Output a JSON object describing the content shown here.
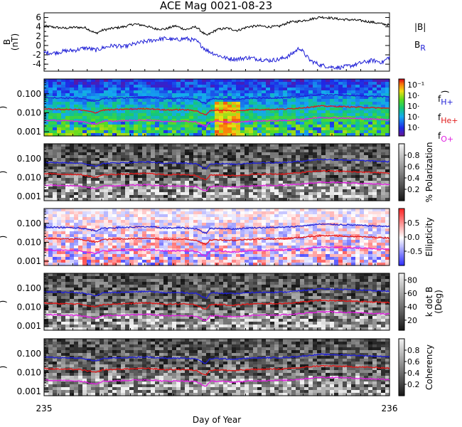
{
  "chart_data": {
    "type": "line",
    "title": "ACE Mag 0021-08-23",
    "xlabel": "Day of Year",
    "x_ticks": [
      "235",
      "236"
    ],
    "xlim": [
      235,
      236
    ],
    "panels": [
      {
        "id": "field",
        "ylabel": "B (nT)",
        "ylabel_line1": "B",
        "ylabel_line2": "(nT)",
        "ylim": [
          -5.5,
          7
        ],
        "y_ticks": [
          "6",
          "4",
          "2",
          "0",
          "-2",
          "-4"
        ],
        "y_tick_values": [
          6,
          4,
          2,
          0,
          -2,
          -4
        ],
        "legend": [
          {
            "name": "|B|",
            "color": "#000000"
          },
          {
            "name": "B",
            "sub": "R",
            "color": "#1f1fd6"
          }
        ],
        "series": [
          {
            "name": "|B|",
            "color": "#000000",
            "x": [
              235.0,
              235.03,
              235.06,
              235.09,
              235.12,
              235.15,
              235.17,
              235.2,
              235.23,
              235.26,
              235.29,
              235.32,
              235.35,
              235.38,
              235.41,
              235.44,
              235.47,
              235.5,
              235.53,
              235.56,
              235.59,
              235.62,
              235.65,
              235.68,
              235.71,
              235.74,
              235.77,
              235.8,
              235.83,
              235.86,
              235.89,
              235.92,
              235.95,
              235.98,
              236.0
            ],
            "values": [
              4.2,
              3.9,
              3.7,
              3.9,
              3.8,
              2.6,
              3.3,
              3.7,
              4.0,
              4.6,
              4.3,
              3.6,
              3.5,
              4.2,
              3.4,
              4.0,
              2.1,
              3.4,
              3.7,
              3.2,
              4.0,
              4.2,
              4.0,
              4.1,
              5.0,
              5.2,
              5.6,
              6.1,
              5.9,
              5.6,
              5.5,
              5.3,
              5.0,
              4.6,
              4.4
            ]
          },
          {
            "name": "B_R",
            "color": "#1f1fd6",
            "x": [
              235.0,
              235.03,
              235.06,
              235.09,
              235.12,
              235.15,
              235.17,
              235.2,
              235.23,
              235.26,
              235.29,
              235.32,
              235.35,
              235.38,
              235.41,
              235.44,
              235.47,
              235.5,
              235.53,
              235.56,
              235.59,
              235.62,
              235.65,
              235.68,
              235.71,
              235.74,
              235.77,
              235.8,
              235.83,
              235.86,
              235.89,
              235.92,
              235.95,
              235.98,
              236.0
            ],
            "values": [
              -1.5,
              -1.6,
              -1.2,
              -1.0,
              -0.5,
              -1.0,
              -0.5,
              0.0,
              -0.3,
              0.3,
              0.8,
              1.2,
              1.5,
              1.2,
              1.5,
              1.0,
              -1.0,
              -2.0,
              -2.8,
              -2.9,
              -2.6,
              -2.9,
              -3.2,
              -3.0,
              -2.2,
              -0.5,
              -3.2,
              -4.2,
              -4.6,
              -4.7,
              -4.3,
              -3.7,
              -3.2,
              -3.6,
              -2.4
            ]
          }
        ]
      },
      {
        "id": "power",
        "ylim_log": [
          0.0006,
          0.6
        ],
        "y_ticks": [
          "0.100",
          "0.010",
          "0.001"
        ],
        "y_tick_values": [
          0.1,
          0.01,
          0.001
        ],
        "colorbar": {
          "colormap": "rainbow",
          "tick_labels": [
            "10⁻¹",
            "10·",
            "10·",
            "10·",
            "10·"
          ],
          "label": ")"
        },
        "legend": [
          {
            "name": "f",
            "sub": "H+",
            "color": "#1f1fd6"
          },
          {
            "name": "f",
            "sub": "He+",
            "color": "#e01818"
          },
          {
            "name": "f",
            "sub": "O+",
            "color": "#e020e0"
          }
        ]
      },
      {
        "id": "polarization",
        "ylim_log": [
          0.0006,
          0.6
        ],
        "y_ticks": [
          "0.100",
          "0.010",
          "0.001"
        ],
        "y_tick_values": [
          0.1,
          0.01,
          0.001
        ],
        "colorbar": {
          "colormap": "gray",
          "label": "% Polarization",
          "tick_labels": [
            "0.8",
            "0.6",
            "0.4",
            "0.2"
          ],
          "tick_values": [
            0.8,
            0.6,
            0.4,
            0.2
          ],
          "range": [
            0,
            1
          ]
        }
      },
      {
        "id": "ellipticity",
        "ylim_log": [
          0.0006,
          0.6
        ],
        "y_ticks": [
          "0.100",
          "0.010",
          "0.001"
        ],
        "y_tick_values": [
          0.1,
          0.01,
          0.001
        ],
        "colorbar": {
          "colormap": "bwr",
          "label": "Ellipticity",
          "tick_labels": [
            "0.5",
            "0.0",
            "-0.5"
          ],
          "tick_values": [
            0.5,
            0.0,
            -0.5
          ],
          "range": [
            -1,
            1
          ]
        }
      },
      {
        "id": "kdotb",
        "ylim_log": [
          0.0006,
          0.6
        ],
        "y_ticks": [
          "0.100",
          "0.010",
          "0.001"
        ],
        "y_tick_values": [
          0.1,
          0.01,
          0.001
        ],
        "colorbar": {
          "colormap": "gray",
          "label": "k dot B",
          "label2": "(Deg)",
          "tick_labels": [
            "80",
            "60",
            "40",
            "20"
          ],
          "tick_values": [
            80,
            60,
            40,
            20
          ],
          "range": [
            5,
            90
          ]
        }
      },
      {
        "id": "coherency",
        "ylim_log": [
          0.0006,
          0.6
        ],
        "y_ticks": [
          "0.100",
          "0.010",
          "0.001"
        ],
        "y_tick_values": [
          0.1,
          0.01,
          0.001
        ],
        "colorbar": {
          "colormap": "gray",
          "label": "Coherency",
          "tick_labels": [
            "0.8",
            "0.6",
            "0.4",
            "0.2"
          ],
          "tick_values": [
            0.8,
            0.6,
            0.4,
            0.2
          ],
          "range": [
            0,
            1
          ]
        }
      }
    ],
    "gyrofrequency_series": [
      {
        "name": "f_H+",
        "color": "#1f1fd6",
        "x": [
          235.0,
          235.05,
          235.1,
          235.15,
          235.17,
          235.2,
          235.25,
          235.3,
          235.35,
          235.4,
          235.44,
          235.46,
          235.47,
          235.48,
          235.5,
          235.55,
          235.6,
          235.65,
          235.7,
          235.75,
          235.8,
          235.85,
          235.9,
          235.95,
          236.0
        ],
        "values": [
          0.064,
          0.06,
          0.058,
          0.04,
          0.055,
          0.058,
          0.062,
          0.066,
          0.056,
          0.058,
          0.052,
          0.034,
          0.03,
          0.052,
          0.055,
          0.05,
          0.058,
          0.06,
          0.062,
          0.074,
          0.09,
          0.086,
          0.08,
          0.074,
          0.068
        ]
      },
      {
        "name": "f_He+",
        "color": "#e01818",
        "x": [
          235.0,
          235.05,
          235.1,
          235.15,
          235.17,
          235.2,
          235.25,
          235.3,
          235.35,
          235.4,
          235.44,
          235.46,
          235.47,
          235.48,
          235.5,
          235.55,
          235.6,
          235.65,
          235.7,
          235.75,
          235.8,
          235.85,
          235.9,
          235.95,
          236.0
        ],
        "values": [
          0.016,
          0.015,
          0.0145,
          0.01,
          0.0138,
          0.0145,
          0.0155,
          0.0165,
          0.014,
          0.0145,
          0.013,
          0.0085,
          0.0075,
          0.013,
          0.0138,
          0.0125,
          0.0145,
          0.015,
          0.0155,
          0.0185,
          0.0225,
          0.0215,
          0.02,
          0.0185,
          0.017
        ]
      },
      {
        "name": "f_O+",
        "color": "#e020e0",
        "x": [
          235.0,
          235.05,
          235.1,
          235.15,
          235.17,
          235.2,
          235.25,
          235.3,
          235.35,
          235.4,
          235.44,
          235.46,
          235.47,
          235.48,
          235.5,
          235.55,
          235.6,
          235.65,
          235.7,
          235.75,
          235.8,
          235.85,
          235.9,
          235.95,
          236.0
        ],
        "values": [
          0.004,
          0.0038,
          0.0036,
          0.0025,
          0.0035,
          0.0036,
          0.0039,
          0.0041,
          0.0035,
          0.0036,
          0.0033,
          0.0021,
          0.0019,
          0.0033,
          0.0035,
          0.0031,
          0.0036,
          0.0038,
          0.0039,
          0.0046,
          0.0056,
          0.0054,
          0.005,
          0.0046,
          0.0043
        ]
      }
    ]
  }
}
